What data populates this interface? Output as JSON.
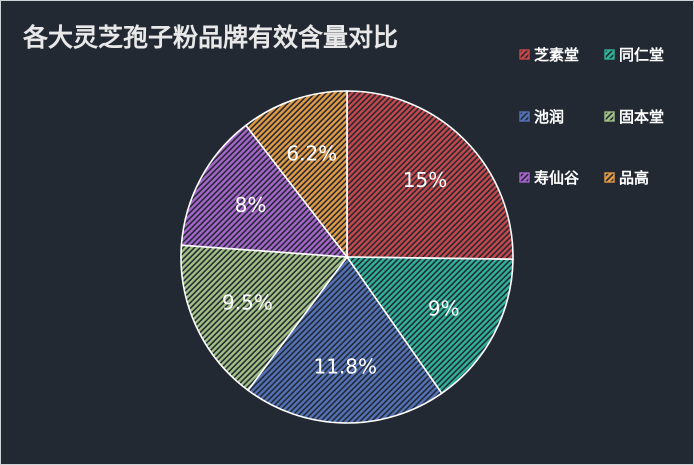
{
  "chart_data": {
    "type": "pie",
    "title": "各大灵芝孢子粉品牌有效含量对比",
    "slices": [
      {
        "name": "芝素堂",
        "value": 15,
        "label": "15%",
        "color": "#c7474a"
      },
      {
        "name": "同仁堂",
        "value": 9,
        "label": "9%",
        "color": "#2fb39a"
      },
      {
        "name": "池润",
        "value": 11.8,
        "label": "11.8%",
        "color": "#5472b8"
      },
      {
        "name": "固本堂",
        "value": 9.5,
        "label": "9.5%",
        "color": "#a3c184"
      },
      {
        "name": "寿仙谷",
        "value": 8,
        "label": "8%",
        "color": "#a765cc"
      },
      {
        "name": "品高",
        "value": 6.2,
        "label": "6.2%",
        "color": "#e39a45"
      }
    ],
    "legend_position": "top-right",
    "background": "#222933"
  }
}
